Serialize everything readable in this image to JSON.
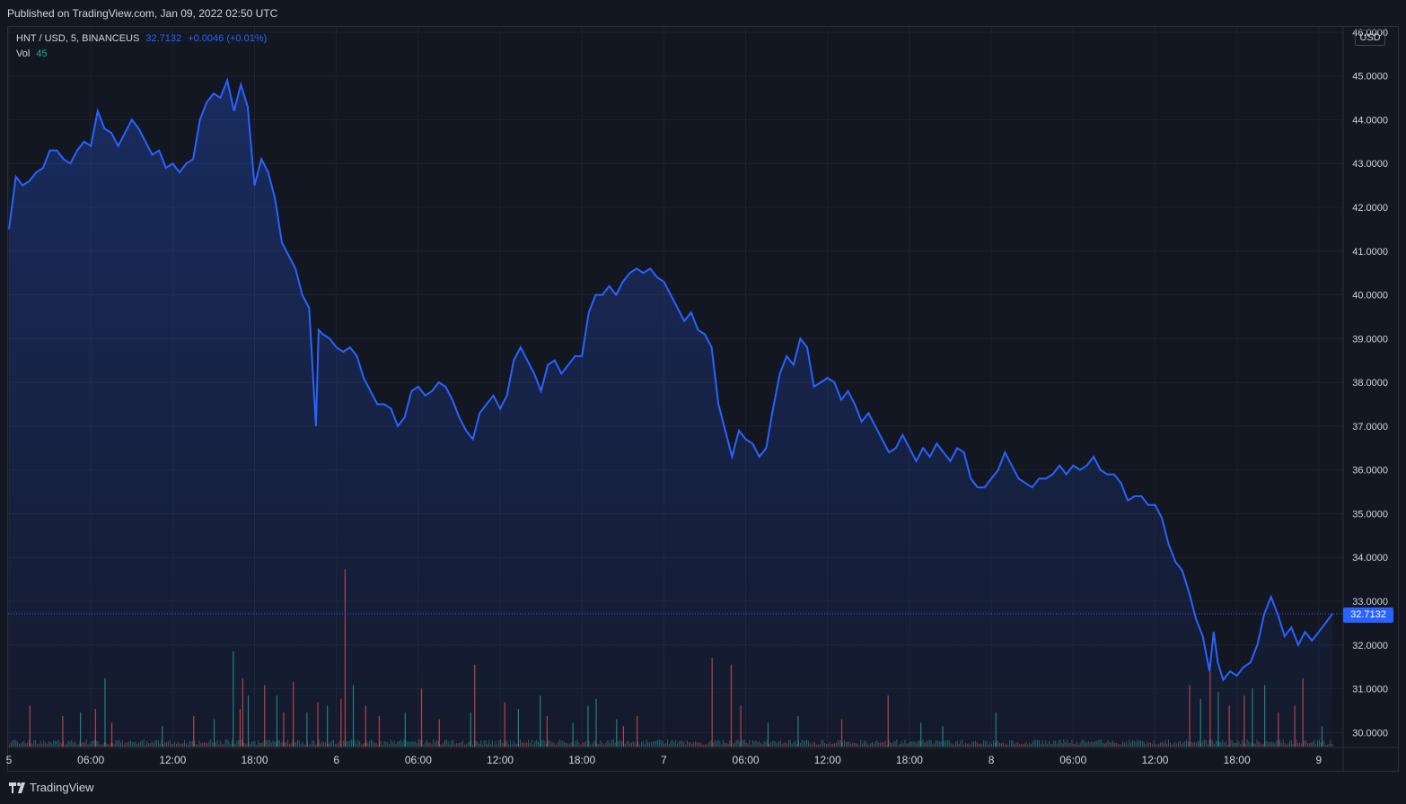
{
  "header": {
    "published": "Published on TradingView.com, Jan 09, 2022 02:50 UTC"
  },
  "legend": {
    "symbol": "HNT / USD, 5, BINANCEUS",
    "price": "32.7132",
    "change": "+0.0046 (+0.01%)",
    "vol_label": "Vol",
    "vol_value": "45"
  },
  "axis": {
    "currency": "USD",
    "last_price_tag": "32.7132"
  },
  "footer": {
    "brand": "TradingView"
  },
  "colors": {
    "line": "#2962ff",
    "up": "#26a69a",
    "down": "#ef5350",
    "grid": "#1e222d",
    "bg": "#131722"
  },
  "chart_data": {
    "type": "area",
    "y_ticks": [
      "30.0000",
      "31.0000",
      "32.0000",
      "33.0000",
      "34.0000",
      "35.0000",
      "36.0000",
      "37.0000",
      "38.0000",
      "39.0000",
      "40.0000",
      "41.0000",
      "42.0000",
      "43.0000",
      "44.0000",
      "45.0000",
      "46.0000"
    ],
    "ylim": [
      29.7,
      46.1
    ],
    "x_ticks": [
      {
        "label": "5",
        "h": 0
      },
      {
        "label": "06:00",
        "h": 6
      },
      {
        "label": "12:00",
        "h": 12
      },
      {
        "label": "18:00",
        "h": 18
      },
      {
        "label": "6",
        "h": 24
      },
      {
        "label": "06:00",
        "h": 30
      },
      {
        "label": "12:00",
        "h": 36
      },
      {
        "label": "18:00",
        "h": 42
      },
      {
        "label": "7",
        "h": 48
      },
      {
        "label": "06:00",
        "h": 54
      },
      {
        "label": "12:00",
        "h": 60
      },
      {
        "label": "18:00",
        "h": 66
      },
      {
        "label": "8",
        "h": 72
      },
      {
        "label": "06:00",
        "h": 78
      },
      {
        "label": "12:00",
        "h": 84
      },
      {
        "label": "18:00",
        "h": 90
      },
      {
        "label": "9",
        "h": 96
      }
    ],
    "xlim_hours": [
      0,
      99
    ],
    "last_price": 32.7132,
    "price_series": [
      [
        0,
        41.5
      ],
      [
        0.5,
        42.7
      ],
      [
        1,
        42.5
      ],
      [
        1.5,
        42.6
      ],
      [
        2,
        42.8
      ],
      [
        2.5,
        42.9
      ],
      [
        3,
        43.3
      ],
      [
        3.5,
        43.3
      ],
      [
        4,
        43.1
      ],
      [
        4.5,
        43.0
      ],
      [
        5,
        43.3
      ],
      [
        5.5,
        43.5
      ],
      [
        6,
        43.4
      ],
      [
        6.5,
        44.2
      ],
      [
        7,
        43.8
      ],
      [
        7.5,
        43.7
      ],
      [
        8,
        43.4
      ],
      [
        8.5,
        43.7
      ],
      [
        9,
        44.0
      ],
      [
        9.5,
        43.8
      ],
      [
        10,
        43.5
      ],
      [
        10.5,
        43.2
      ],
      [
        11,
        43.3
      ],
      [
        11.5,
        42.9
      ],
      [
        12,
        43.0
      ],
      [
        12.5,
        42.8
      ],
      [
        13,
        43.0
      ],
      [
        13.5,
        43.1
      ],
      [
        14,
        44.0
      ],
      [
        14.5,
        44.4
      ],
      [
        15,
        44.6
      ],
      [
        15.5,
        44.5
      ],
      [
        16,
        44.9
      ],
      [
        16.5,
        44.2
      ],
      [
        17,
        44.8
      ],
      [
        17.5,
        44.3
      ],
      [
        18,
        42.5
      ],
      [
        18.5,
        43.1
      ],
      [
        19,
        42.8
      ],
      [
        19.5,
        42.2
      ],
      [
        20,
        41.2
      ],
      [
        20.5,
        40.9
      ],
      [
        21,
        40.6
      ],
      [
        21.5,
        40.0
      ],
      [
        22,
        39.7
      ],
      [
        22.5,
        37.0
      ],
      [
        22.7,
        39.2
      ],
      [
        23,
        39.1
      ],
      [
        23.5,
        39.0
      ],
      [
        24,
        38.8
      ],
      [
        24.5,
        38.7
      ],
      [
        25,
        38.8
      ],
      [
        25.5,
        38.6
      ],
      [
        26,
        38.1
      ],
      [
        26.5,
        37.8
      ],
      [
        27,
        37.5
      ],
      [
        27.5,
        37.5
      ],
      [
        28,
        37.4
      ],
      [
        28.5,
        37.0
      ],
      [
        29,
        37.2
      ],
      [
        29.5,
        37.8
      ],
      [
        30,
        37.9
      ],
      [
        30.5,
        37.7
      ],
      [
        31,
        37.8
      ],
      [
        31.5,
        38.0
      ],
      [
        32,
        37.9
      ],
      [
        32.5,
        37.6
      ],
      [
        33,
        37.2
      ],
      [
        33.5,
        36.9
      ],
      [
        34,
        36.7
      ],
      [
        34.5,
        37.3
      ],
      [
        35,
        37.5
      ],
      [
        35.5,
        37.7
      ],
      [
        36,
        37.4
      ],
      [
        36.5,
        37.7
      ],
      [
        37,
        38.5
      ],
      [
        37.5,
        38.8
      ],
      [
        38,
        38.5
      ],
      [
        38.5,
        38.2
      ],
      [
        39,
        37.8
      ],
      [
        39.5,
        38.4
      ],
      [
        40,
        38.5
      ],
      [
        40.5,
        38.2
      ],
      [
        41,
        38.4
      ],
      [
        41.5,
        38.6
      ],
      [
        42,
        38.6
      ],
      [
        42.5,
        39.6
      ],
      [
        43,
        40.0
      ],
      [
        43.5,
        40.0
      ],
      [
        44,
        40.2
      ],
      [
        44.5,
        40.0
      ],
      [
        45,
        40.3
      ],
      [
        45.5,
        40.5
      ],
      [
        46,
        40.6
      ],
      [
        46.5,
        40.5
      ],
      [
        47,
        40.6
      ],
      [
        47.5,
        40.4
      ],
      [
        48,
        40.3
      ],
      [
        48.5,
        40.0
      ],
      [
        49,
        39.7
      ],
      [
        49.5,
        39.4
      ],
      [
        50,
        39.6
      ],
      [
        50.5,
        39.2
      ],
      [
        51,
        39.1
      ],
      [
        51.5,
        38.8
      ],
      [
        52,
        37.5
      ],
      [
        52.5,
        36.9
      ],
      [
        53,
        36.3
      ],
      [
        53.5,
        36.9
      ],
      [
        54,
        36.7
      ],
      [
        54.5,
        36.6
      ],
      [
        55,
        36.3
      ],
      [
        55.5,
        36.5
      ],
      [
        56,
        37.4
      ],
      [
        56.5,
        38.2
      ],
      [
        57,
        38.6
      ],
      [
        57.5,
        38.4
      ],
      [
        58,
        39.0
      ],
      [
        58.5,
        38.8
      ],
      [
        59,
        37.9
      ],
      [
        59.5,
        38.0
      ],
      [
        60,
        38.1
      ],
      [
        60.5,
        38.0
      ],
      [
        61,
        37.6
      ],
      [
        61.5,
        37.8
      ],
      [
        62,
        37.5
      ],
      [
        62.5,
        37.1
      ],
      [
        63,
        37.3
      ],
      [
        63.5,
        37.0
      ],
      [
        64,
        36.7
      ],
      [
        64.5,
        36.4
      ],
      [
        65,
        36.5
      ],
      [
        65.5,
        36.8
      ],
      [
        66,
        36.5
      ],
      [
        66.5,
        36.2
      ],
      [
        67,
        36.5
      ],
      [
        67.5,
        36.3
      ],
      [
        68,
        36.6
      ],
      [
        68.5,
        36.4
      ],
      [
        69,
        36.2
      ],
      [
        69.5,
        36.5
      ],
      [
        70,
        36.4
      ],
      [
        70.5,
        35.8
      ],
      [
        71,
        35.6
      ],
      [
        71.5,
        35.6
      ],
      [
        72,
        35.8
      ],
      [
        72.5,
        36.0
      ],
      [
        73,
        36.4
      ],
      [
        73.5,
        36.1
      ],
      [
        74,
        35.8
      ],
      [
        74.5,
        35.7
      ],
      [
        75,
        35.6
      ],
      [
        75.5,
        35.8
      ],
      [
        76,
        35.8
      ],
      [
        76.5,
        35.9
      ],
      [
        77,
        36.1
      ],
      [
        77.5,
        35.9
      ],
      [
        78,
        36.1
      ],
      [
        78.5,
        36.0
      ],
      [
        79,
        36.1
      ],
      [
        79.5,
        36.3
      ],
      [
        80,
        36.0
      ],
      [
        80.5,
        35.9
      ],
      [
        81,
        35.9
      ],
      [
        81.5,
        35.7
      ],
      [
        82,
        35.3
      ],
      [
        82.5,
        35.4
      ],
      [
        83,
        35.4
      ],
      [
        83.5,
        35.2
      ],
      [
        84,
        35.2
      ],
      [
        84.5,
        34.9
      ],
      [
        85,
        34.3
      ],
      [
        85.5,
        33.9
      ],
      [
        86,
        33.7
      ],
      [
        86.5,
        33.2
      ],
      [
        87,
        32.6
      ],
      [
        87.5,
        32.2
      ],
      [
        88,
        31.4
      ],
      [
        88.3,
        32.3
      ],
      [
        88.6,
        31.6
      ],
      [
        89,
        31.2
      ],
      [
        89.5,
        31.4
      ],
      [
        90,
        31.3
      ],
      [
        90.5,
        31.5
      ],
      [
        91,
        31.6
      ],
      [
        91.5,
        32.0
      ],
      [
        92,
        32.7
      ],
      [
        92.5,
        33.1
      ],
      [
        93,
        32.7
      ],
      [
        93.5,
        32.2
      ],
      [
        94,
        32.4
      ],
      [
        94.5,
        32.0
      ],
      [
        95,
        32.3
      ],
      [
        95.5,
        32.1
      ],
      [
        96,
        32.3
      ],
      [
        96.5,
        32.5
      ],
      [
        97,
        32.7132
      ]
    ],
    "volume_series": [
      [
        1.5,
        1.2,
        "d"
      ],
      [
        3.9,
        0.9,
        "d"
      ],
      [
        5.2,
        1.0,
        "u"
      ],
      [
        6.3,
        1.1,
        "d"
      ],
      [
        7.0,
        2.0,
        "u"
      ],
      [
        7.5,
        0.7,
        "d"
      ],
      [
        11.2,
        0.6,
        "u"
      ],
      [
        13.5,
        0.9,
        "d"
      ],
      [
        15.0,
        0.8,
        "u"
      ],
      [
        16.4,
        2.8,
        "u"
      ],
      [
        16.9,
        1.1,
        "d"
      ],
      [
        17.1,
        2.0,
        "d"
      ],
      [
        17.5,
        1.5,
        "u"
      ],
      [
        18.7,
        1.8,
        "d"
      ],
      [
        19.6,
        1.5,
        "u"
      ],
      [
        20.1,
        1.0,
        "d"
      ],
      [
        20.8,
        1.9,
        "d"
      ],
      [
        21.8,
        1.0,
        "u"
      ],
      [
        22.6,
        1.3,
        "d"
      ],
      [
        23.3,
        1.2,
        "u"
      ],
      [
        24.3,
        1.4,
        "d"
      ],
      [
        24.6,
        5.2,
        "d"
      ],
      [
        25.2,
        1.8,
        "u"
      ],
      [
        26.1,
        1.2,
        "d"
      ],
      [
        27.1,
        0.9,
        "d"
      ],
      [
        29.0,
        1.0,
        "u"
      ],
      [
        30.2,
        1.7,
        "d"
      ],
      [
        31.5,
        0.8,
        "d"
      ],
      [
        33.8,
        1.0,
        "u"
      ],
      [
        34.1,
        2.4,
        "d"
      ],
      [
        36.3,
        1.3,
        "d"
      ],
      [
        37.3,
        1.1,
        "u"
      ],
      [
        38.9,
        1.5,
        "u"
      ],
      [
        39.4,
        0.9,
        "d"
      ],
      [
        41.3,
        0.7,
        "u"
      ],
      [
        42.4,
        1.2,
        "u"
      ],
      [
        43.0,
        1.4,
        "u"
      ],
      [
        44.5,
        0.8,
        "u"
      ],
      [
        45.0,
        0.6,
        "d"
      ],
      [
        46.0,
        0.9,
        "d"
      ],
      [
        51.5,
        2.6,
        "d"
      ],
      [
        52.9,
        2.4,
        "d"
      ],
      [
        53.6,
        1.2,
        "d"
      ],
      [
        55.6,
        0.7,
        "u"
      ],
      [
        57.8,
        0.9,
        "u"
      ],
      [
        61.0,
        0.8,
        "d"
      ],
      [
        64.4,
        1.5,
        "d"
      ],
      [
        66.8,
        0.7,
        "u"
      ],
      [
        68.4,
        0.6,
        "u"
      ],
      [
        72.3,
        1.0,
        "u"
      ],
      [
        86.5,
        1.8,
        "d"
      ],
      [
        87.3,
        1.4,
        "u"
      ],
      [
        88.0,
        2.2,
        "d"
      ],
      [
        88.6,
        1.6,
        "u"
      ],
      [
        89.4,
        1.2,
        "d"
      ],
      [
        90.5,
        1.5,
        "d"
      ],
      [
        91.1,
        1.7,
        "u"
      ],
      [
        92.0,
        1.8,
        "u"
      ],
      [
        93.0,
        1.0,
        "d"
      ],
      [
        94.2,
        1.2,
        "d"
      ],
      [
        94.8,
        2.0,
        "d"
      ],
      [
        96.2,
        0.6,
        "u"
      ]
    ]
  }
}
